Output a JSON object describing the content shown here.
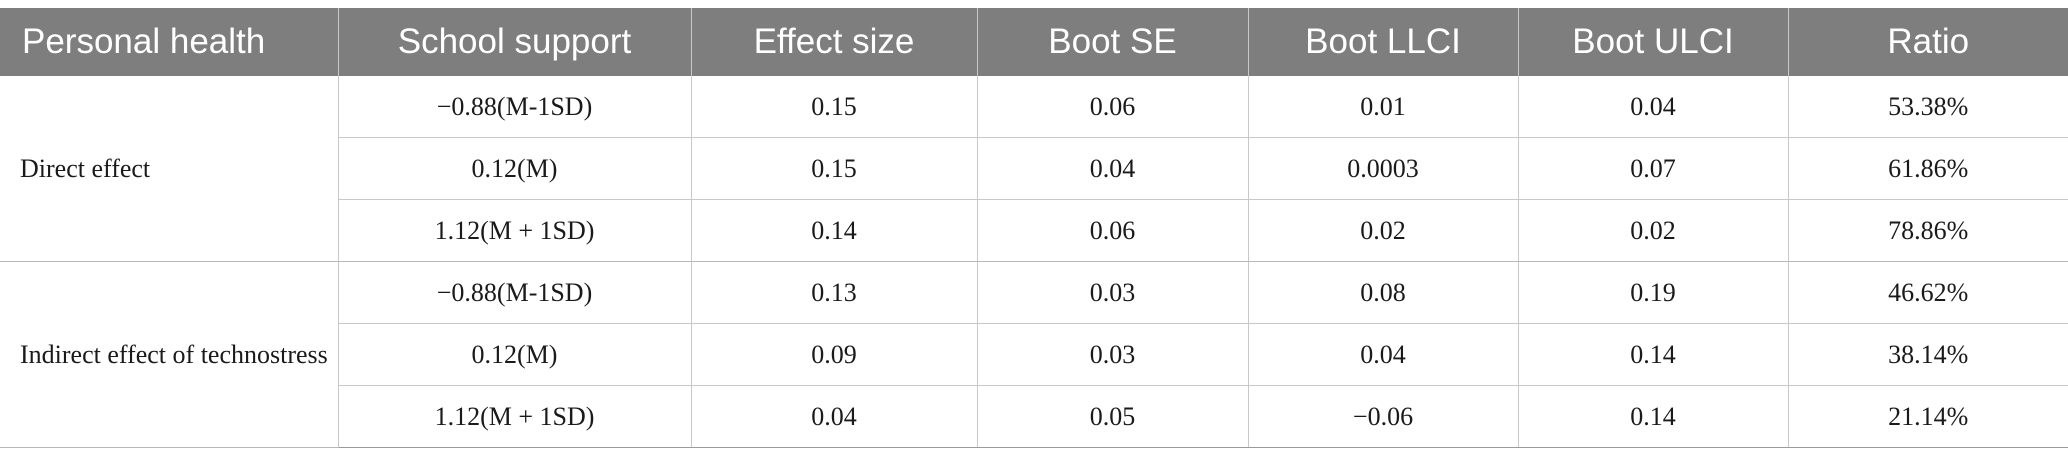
{
  "table": {
    "headers": [
      "Personal health",
      "School support",
      "Effect size",
      "Boot SE",
      "Boot LLCI",
      "Boot ULCI",
      "Ratio"
    ],
    "groups": [
      {
        "label": "Direct effect",
        "rows": [
          [
            "−0.88(M-1SD)",
            "0.15",
            "0.06",
            "0.01",
            "0.04",
            "53.38%"
          ],
          [
            "0.12(M)",
            "0.15",
            "0.04",
            "0.0003",
            "0.07",
            "61.86%"
          ],
          [
            "1.12(M + 1SD)",
            "0.14",
            "0.06",
            "0.02",
            "0.02",
            "78.86%"
          ]
        ]
      },
      {
        "label": "Indirect effect of technostress",
        "rows": [
          [
            "−0.88(M-1SD)",
            "0.13",
            "0.03",
            "0.08",
            "0.19",
            "46.62%"
          ],
          [
            "0.12(M)",
            "0.09",
            "0.03",
            "0.04",
            "0.14",
            "38.14%"
          ],
          [
            "1.12(M + 1SD)",
            "0.04",
            "0.05",
            "−0.06",
            "0.14",
            "21.14%"
          ]
        ]
      }
    ]
  }
}
